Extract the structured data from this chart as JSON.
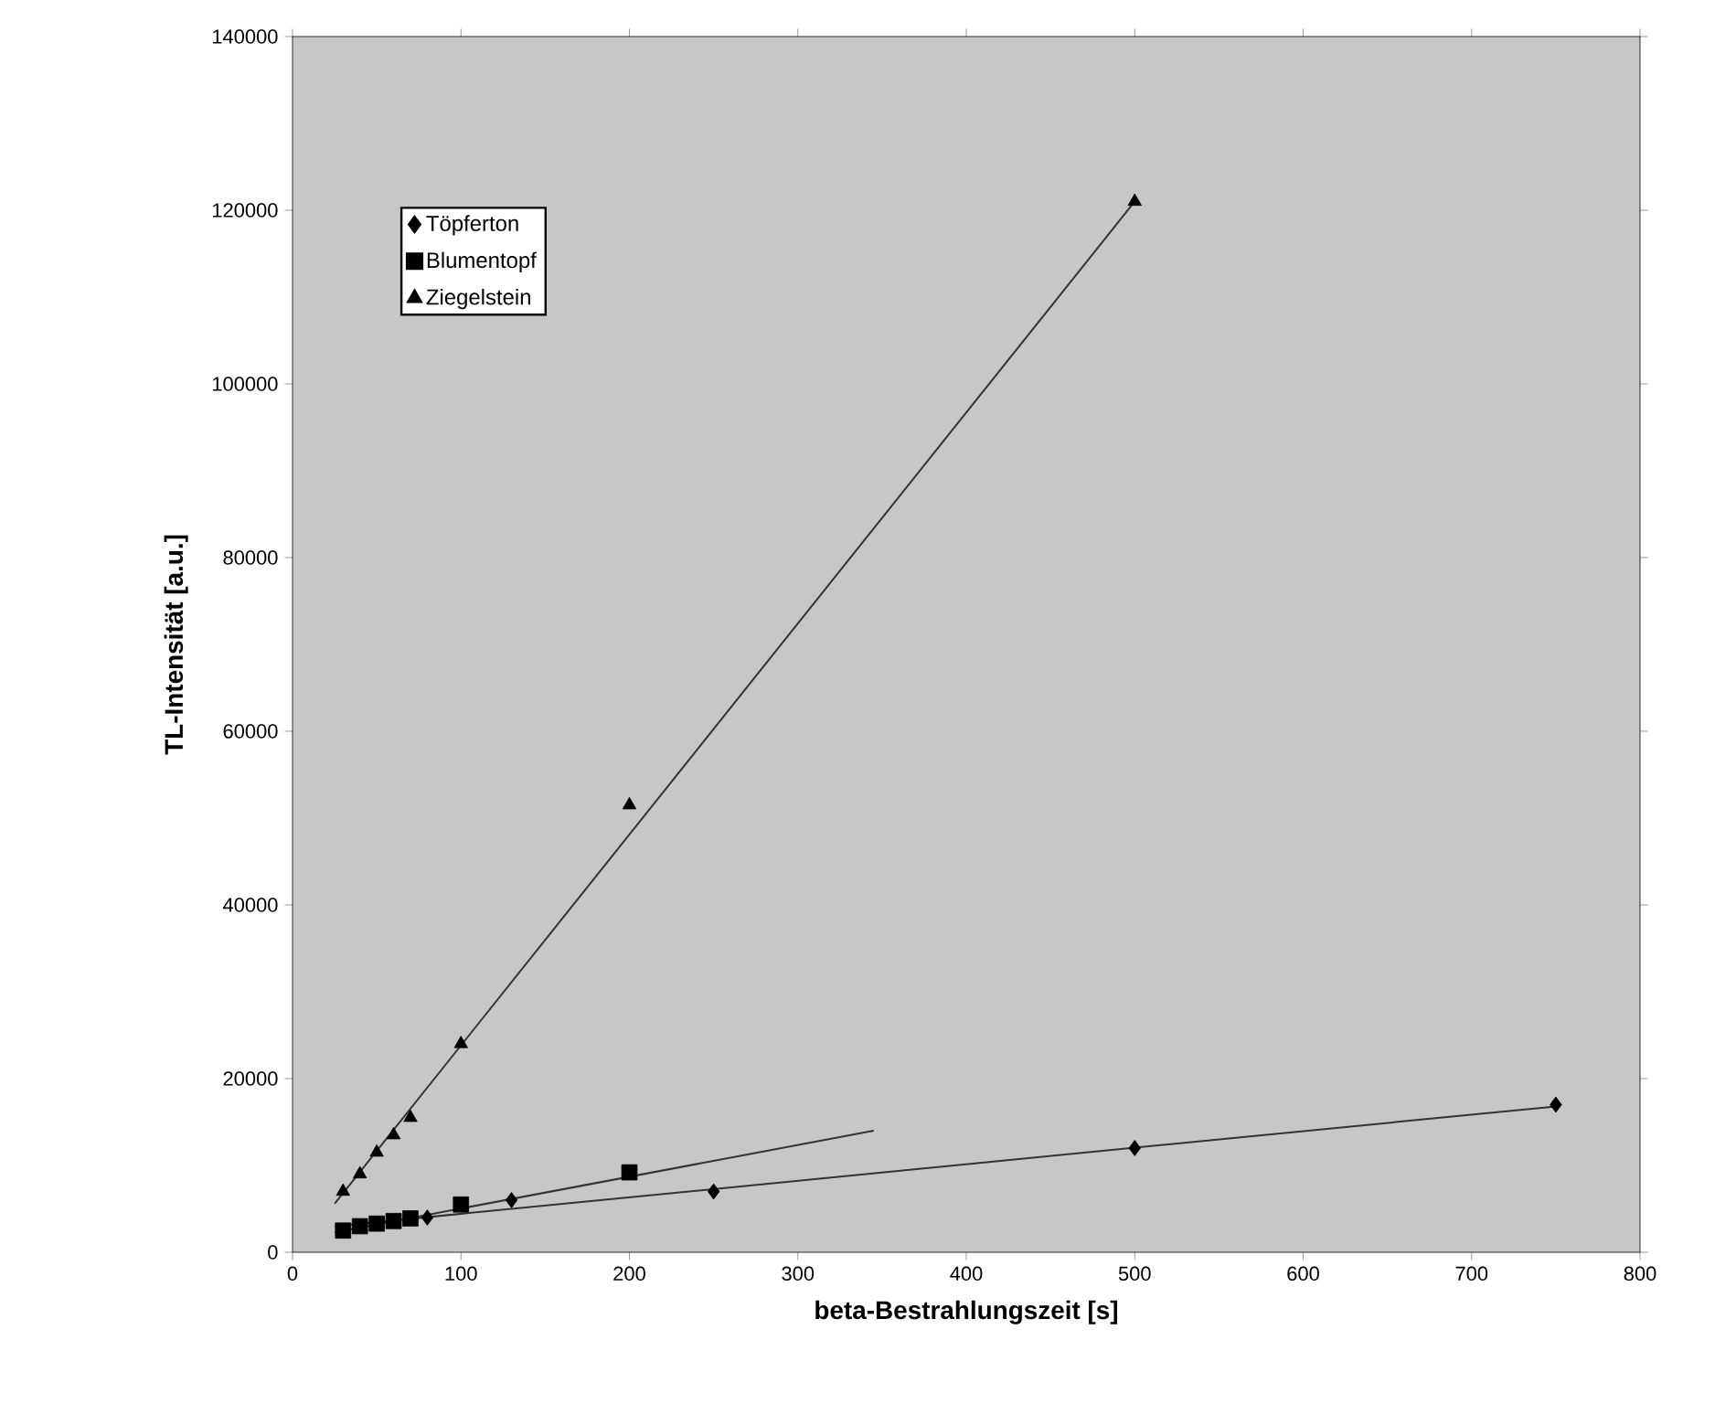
{
  "chart_data": {
    "type": "scatter",
    "xlabel": "beta-Bestrahlungszeit [s]",
    "ylabel": "TL-Intensität [a.u.]",
    "xlim": [
      0,
      800
    ],
    "xticks": [
      0,
      100,
      200,
      300,
      400,
      500,
      600,
      700,
      800
    ],
    "ylim": [
      0,
      140000
    ],
    "yticks": [
      0,
      20000,
      40000,
      60000,
      80000,
      100000,
      120000,
      140000
    ],
    "legend": "top left",
    "grid": false,
    "series": [
      {
        "name": "Töpferton",
        "color": "#000000",
        "marker": "diamond",
        "x": [
          80,
          130,
          250,
          500,
          750
        ],
        "values": [
          4000,
          6000,
          7000,
          12000,
          17000
        ]
      },
      {
        "name": "Blumentopf",
        "color": "#000000",
        "marker": "square",
        "x": [
          30,
          40,
          50,
          60,
          70,
          100,
          200
        ],
        "values": [
          2500,
          3000,
          3300,
          3600,
          3900,
          5500,
          9200
        ]
      },
      {
        "name": "Ziegelstein",
        "color": "#000000",
        "marker": "triangle",
        "x": [
          30,
          40,
          50,
          60,
          70,
          100,
          200,
          500
        ],
        "values": [
          7000,
          9000,
          11500,
          13500,
          15500,
          24000,
          51500,
          121000
        ]
      },
      {
        "type": "line",
        "color": "#333333",
        "marker": "none",
        "line_style": "solid",
        "x": [
          25,
          750
        ],
        "values": [
          3000,
          16800
        ]
      },
      {
        "type": "line",
        "color": "#333333",
        "marker": "none",
        "line_style": "solid",
        "x": [
          25,
          345
        ],
        "values": [
          2300,
          14000
        ]
      },
      {
        "type": "line",
        "color": "#333333",
        "marker": "none",
        "line_style": "solid",
        "x": [
          25,
          500
        ],
        "values": [
          5600,
          121000
        ]
      }
    ]
  }
}
